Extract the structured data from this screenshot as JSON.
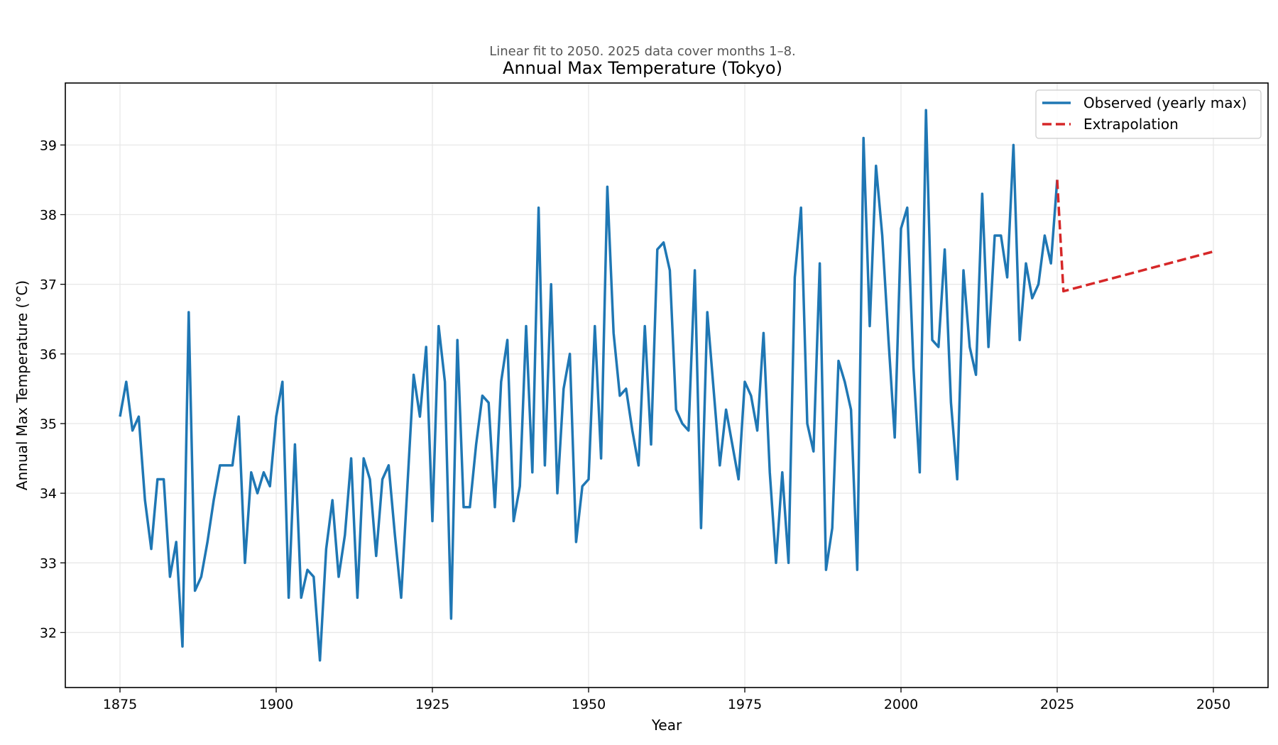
{
  "chart_data": {
    "type": "line",
    "subtitle": "Linear fit to 2050. 2025 data cover months 1–8.",
    "title": "Annual Max Temperature (Tokyo)",
    "xlabel": "Year",
    "ylabel": "Annual Max Temperature (°C)",
    "xlim": [
      1866.25,
      2058.75
    ],
    "ylim": [
      31.21,
      39.89
    ],
    "x_ticks": [
      1875,
      1900,
      1925,
      1950,
      1975,
      2000,
      2025,
      2050
    ],
    "y_ticks": [
      32,
      33,
      34,
      35,
      36,
      37,
      38,
      39
    ],
    "grid": true,
    "legend_position": "top-right",
    "series": [
      {
        "name": "Observed (yearly max)",
        "color": "#1f77b4",
        "style": "solid",
        "x": [
          1875,
          1876,
          1877,
          1878,
          1879,
          1880,
          1881,
          1882,
          1883,
          1884,
          1885,
          1886,
          1887,
          1888,
          1889,
          1890,
          1891,
          1892,
          1893,
          1894,
          1895,
          1896,
          1897,
          1898,
          1899,
          1900,
          1901,
          1902,
          1903,
          1904,
          1905,
          1906,
          1907,
          1908,
          1909,
          1910,
          1911,
          1912,
          1913,
          1914,
          1915,
          1916,
          1917,
          1918,
          1919,
          1920,
          1921,
          1922,
          1923,
          1924,
          1925,
          1926,
          1927,
          1928,
          1929,
          1930,
          1931,
          1932,
          1933,
          1934,
          1935,
          1936,
          1937,
          1938,
          1939,
          1940,
          1941,
          1942,
          1943,
          1944,
          1945,
          1946,
          1947,
          1948,
          1949,
          1950,
          1951,
          1952,
          1953,
          1954,
          1955,
          1956,
          1957,
          1958,
          1959,
          1960,
          1961,
          1962,
          1963,
          1964,
          1965,
          1966,
          1967,
          1968,
          1969,
          1970,
          1971,
          1972,
          1973,
          1974,
          1975,
          1976,
          1977,
          1978,
          1979,
          1980,
          1981,
          1982,
          1983,
          1984,
          1985,
          1986,
          1987,
          1988,
          1989,
          1990,
          1991,
          1992,
          1993,
          1994,
          1995,
          1996,
          1997,
          1998,
          1999,
          2000,
          2001,
          2002,
          2003,
          2004,
          2005,
          2006,
          2007,
          2008,
          2009,
          2010,
          2011,
          2012,
          2013,
          2014,
          2015,
          2016,
          2017,
          2018,
          2019,
          2020,
          2021,
          2022,
          2023,
          2024,
          2025
        ],
        "y": [
          35.1,
          35.6,
          34.9,
          35.1,
          33.9,
          33.2,
          34.2,
          34.2,
          32.8,
          33.3,
          31.8,
          36.6,
          32.6,
          32.8,
          33.3,
          33.9,
          34.4,
          34.4,
          34.4,
          35.1,
          33.0,
          34.3,
          34.0,
          34.3,
          34.1,
          35.1,
          35.6,
          32.5,
          34.7,
          32.5,
          32.9,
          32.8,
          31.6,
          33.2,
          33.9,
          32.8,
          33.4,
          34.5,
          32.5,
          34.5,
          34.2,
          33.1,
          34.2,
          34.4,
          33.4,
          32.5,
          34.1,
          35.7,
          35.1,
          36.1,
          33.6,
          36.4,
          35.6,
          32.2,
          36.2,
          33.8,
          33.8,
          34.7,
          35.4,
          35.3,
          33.8,
          35.6,
          36.2,
          33.6,
          34.1,
          36.4,
          34.3,
          38.1,
          34.4,
          37.0,
          34.0,
          35.5,
          36.0,
          33.3,
          34.1,
          34.2,
          36.4,
          34.5,
          38.4,
          36.3,
          35.4,
          35.5,
          34.9,
          34.4,
          36.4,
          34.7,
          37.5,
          37.6,
          37.2,
          35.2,
          35.0,
          34.9,
          37.2,
          33.5,
          36.6,
          35.5,
          34.4,
          35.2,
          34.7,
          34.2,
          35.6,
          35.4,
          34.9,
          36.3,
          34.3,
          33.0,
          34.3,
          33.0,
          37.1,
          38.1,
          35.0,
          34.6,
          37.3,
          32.9,
          33.5,
          35.9,
          35.6,
          35.2,
          32.9,
          39.1,
          36.4,
          38.7,
          37.7,
          36.2,
          34.8,
          37.8,
          38.1,
          35.8,
          34.3,
          39.5,
          36.2,
          36.1,
          37.5,
          35.3,
          34.2,
          37.2,
          36.1,
          35.7,
          38.3,
          36.1,
          37.7,
          37.7,
          37.1,
          39.0,
          36.2,
          37.3,
          36.8,
          37.0,
          37.7,
          37.3,
          38.5
        ]
      },
      {
        "name": "Extrapolation",
        "color": "#d62728",
        "style": "dashed",
        "x": [
          2025,
          2026,
          2050
        ],
        "y": [
          38.5,
          36.9,
          37.47
        ]
      }
    ]
  }
}
